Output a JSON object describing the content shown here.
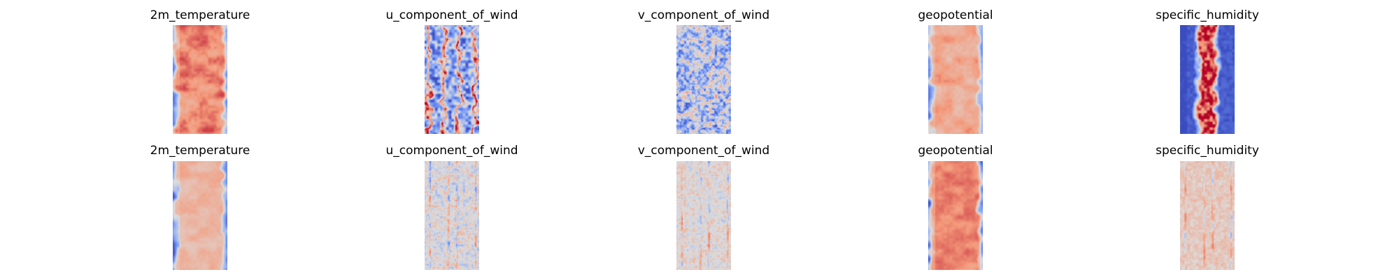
{
  "chart_data": [
    {
      "type": "heatmap",
      "rows": [
        {
          "panels": [
            {
              "title": "2m_temperature",
              "pattern": "band",
              "band_level": 0.78,
              "edge_level": 0.28,
              "variability": 0.1,
              "colormap": "coolwarm"
            },
            {
              "title": "u_component_of_wind",
              "pattern": "streaks",
              "band_level": 0.35,
              "edge_level": 0.35,
              "variability": 0.3,
              "colormap": "coolwarm"
            },
            {
              "title": "v_component_of_wind",
              "pattern": "noise",
              "band_level": 0.38,
              "edge_level": 0.38,
              "variability": 0.28,
              "colormap": "coolwarm"
            },
            {
              "title": "geopotential",
              "pattern": "band",
              "band_level": 0.7,
              "edge_level": 0.25,
              "variability": 0.08,
              "colormap": "coolwarm"
            },
            {
              "title": "specific_humidity",
              "pattern": "narrow-band",
              "band_level": 0.9,
              "edge_level": 0.05,
              "variability": 0.18,
              "colormap": "coolwarm"
            }
          ]
        },
        {
          "panels": [
            {
              "title": "2m_temperature",
              "pattern": "band",
              "band_level": 0.65,
              "edge_level": 0.15,
              "variability": 0.06,
              "colormap": "coolwarm"
            },
            {
              "title": "u_component_of_wind",
              "pattern": "residual",
              "band_level": 0.5,
              "edge_level": 0.5,
              "variability": 0.18,
              "colormap": "coolwarm"
            },
            {
              "title": "v_component_of_wind",
              "pattern": "residual",
              "band_level": 0.52,
              "edge_level": 0.52,
              "variability": 0.14,
              "colormap": "coolwarm"
            },
            {
              "title": "geopotential",
              "pattern": "band",
              "band_level": 0.78,
              "edge_level": 0.12,
              "variability": 0.06,
              "colormap": "coolwarm"
            },
            {
              "title": "specific_humidity",
              "pattern": "residual",
              "band_level": 0.58,
              "edge_level": 0.5,
              "variability": 0.1,
              "colormap": "coolwarm"
            }
          ]
        }
      ],
      "grid": false,
      "axes_visible": false
    }
  ]
}
